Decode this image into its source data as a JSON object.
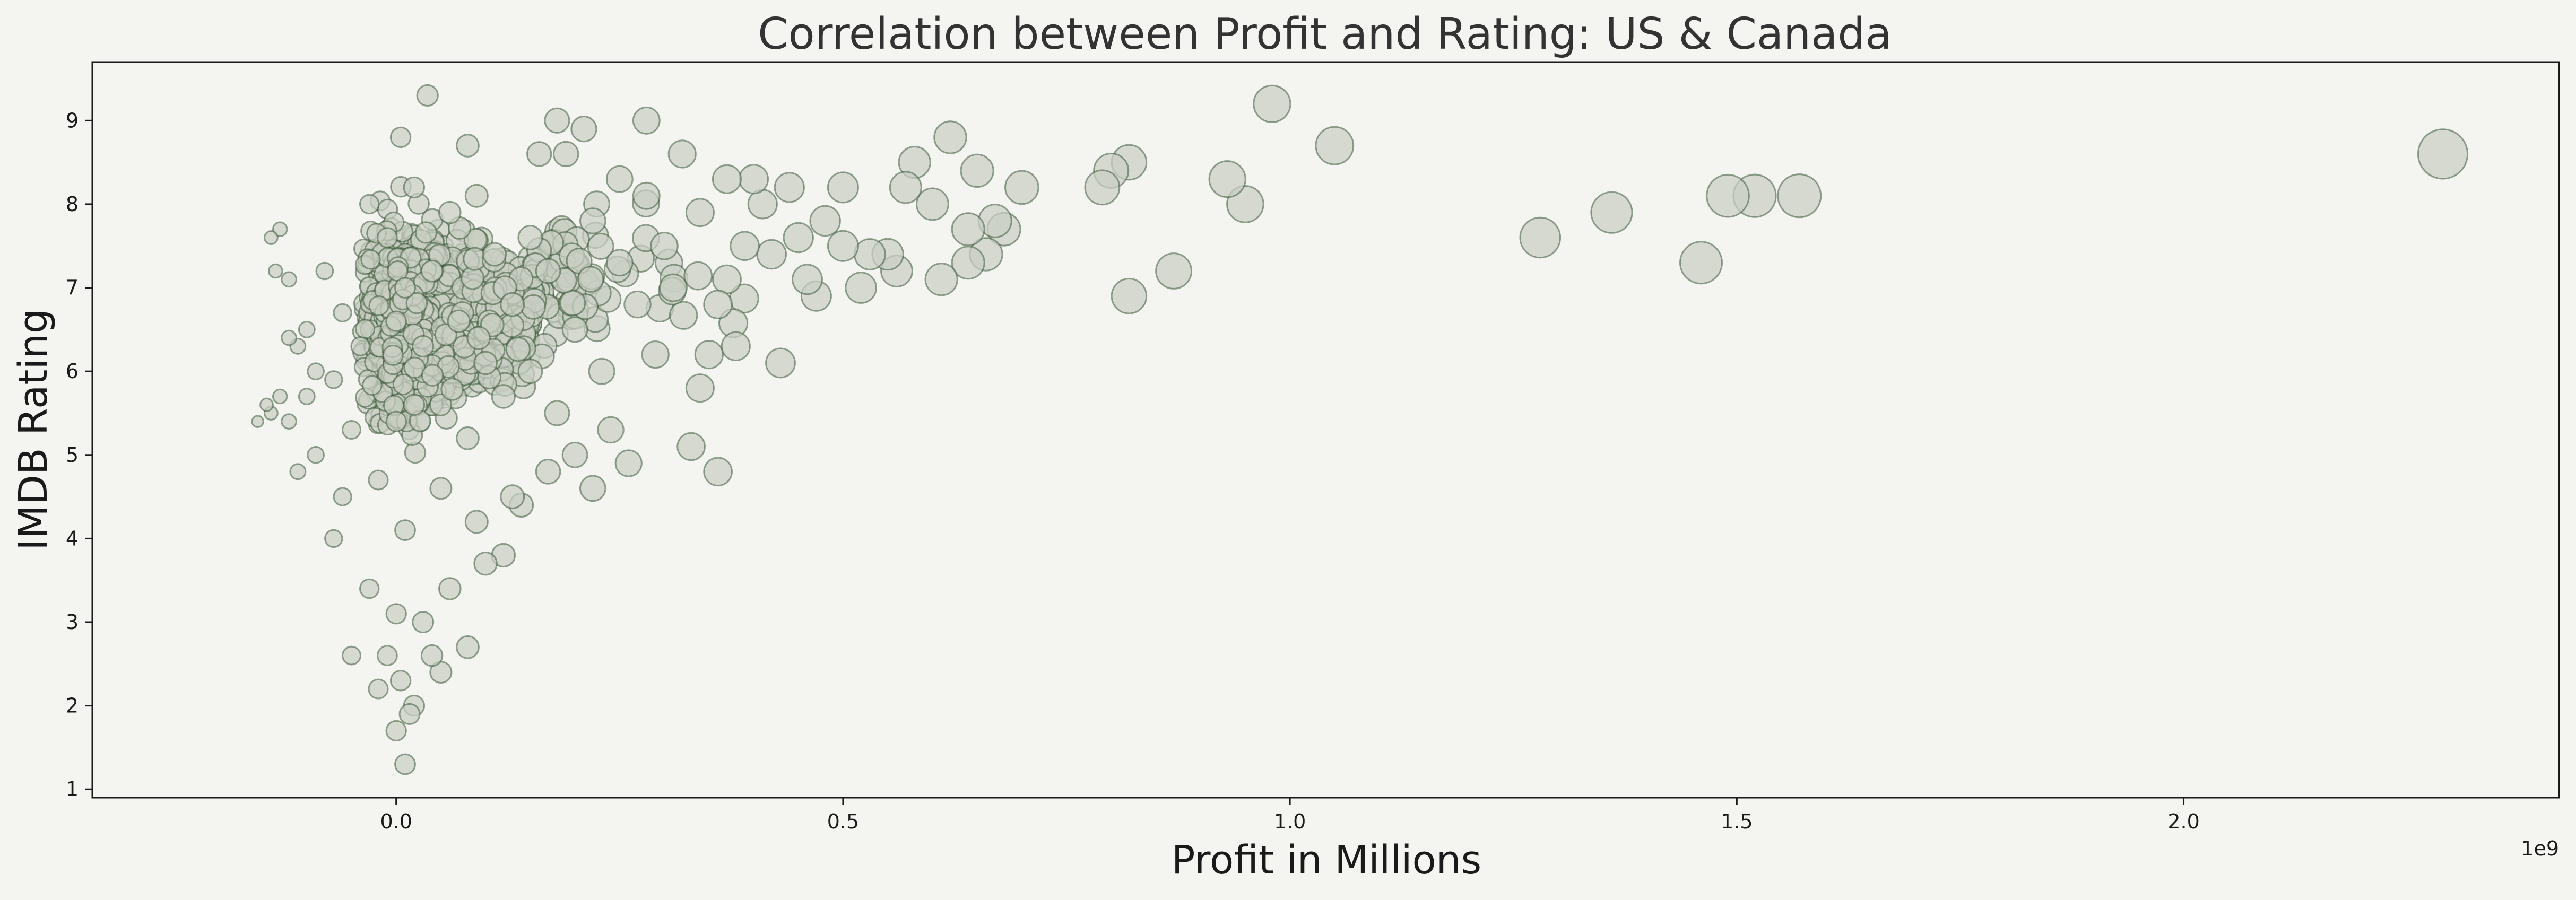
{
  "chart_data": {
    "type": "scatter",
    "title": "Correlation between Profit and Rating: US & Canada",
    "xlabel": "Profit in Millions",
    "ylabel": "IMDB Rating",
    "x_offset_label": "1e9",
    "xlim": [
      -0.34,
      2.42
    ],
    "ylim": [
      0.9,
      9.7
    ],
    "x_ticks": [
      0.0,
      0.5,
      1.0,
      1.5,
      2.0
    ],
    "x_tick_labels": [
      "0.0",
      "0.5",
      "1.0",
      "1.5",
      "2.0"
    ],
    "y_ticks": [
      1,
      2,
      3,
      4,
      5,
      6,
      7,
      8,
      9
    ],
    "y_tick_labels": [
      "1",
      "2",
      "3",
      "4",
      "5",
      "6",
      "7",
      "8",
      "9"
    ],
    "grid": false,
    "legend": "none",
    "marker_size_encodes": "profit",
    "colors": {
      "fill": "#c9cfc4",
      "edge": "#3c5a3a",
      "background": "#f4f5f0"
    },
    "points": [
      [
        2.29,
        8.6
      ],
      [
        1.57,
        8.1
      ],
      [
        1.52,
        8.1
      ],
      [
        1.49,
        8.1
      ],
      [
        1.46,
        7.3
      ],
      [
        1.36,
        7.9
      ],
      [
        1.28,
        7.6
      ],
      [
        1.05,
        8.7
      ],
      [
        0.98,
        9.2
      ],
      [
        0.95,
        8.0
      ],
      [
        0.93,
        8.3
      ],
      [
        0.87,
        7.2
      ],
      [
        0.82,
        6.9
      ],
      [
        0.82,
        8.5
      ],
      [
        0.8,
        8.4
      ],
      [
        0.79,
        8.2
      ],
      [
        0.7,
        8.2
      ],
      [
        0.68,
        7.7
      ],
      [
        0.67,
        7.8
      ],
      [
        0.66,
        7.4
      ],
      [
        0.65,
        8.4
      ],
      [
        0.64,
        7.3
      ],
      [
        0.64,
        7.7
      ],
      [
        0.62,
        8.8
      ],
      [
        0.61,
        7.1
      ],
      [
        0.6,
        8.0
      ],
      [
        0.58,
        8.5
      ],
      [
        0.57,
        8.2
      ],
      [
        0.56,
        7.2
      ],
      [
        0.55,
        7.4
      ],
      [
        0.53,
        7.4
      ],
      [
        0.52,
        7.0
      ],
      [
        0.5,
        7.5
      ],
      [
        0.5,
        8.2
      ],
      [
        0.48,
        7.8
      ],
      [
        0.47,
        6.9
      ],
      [
        0.46,
        7.1
      ],
      [
        0.45,
        7.6
      ],
      [
        0.44,
        8.2
      ],
      [
        0.43,
        6.1
      ],
      [
        0.42,
        7.4
      ],
      [
        0.41,
        8.0
      ],
      [
        0.4,
        8.3
      ],
      [
        0.39,
        7.5
      ],
      [
        0.38,
        6.3
      ],
      [
        0.37,
        8.3
      ],
      [
        0.37,
        7.1
      ],
      [
        0.36,
        6.8
      ],
      [
        0.36,
        4.8
      ],
      [
        0.35,
        6.2
      ],
      [
        0.34,
        5.8
      ],
      [
        0.34,
        7.9
      ],
      [
        0.33,
        5.1
      ],
      [
        0.32,
        8.6
      ],
      [
        0.31,
        7.0
      ],
      [
        0.3,
        7.5
      ],
      [
        0.29,
        6.2
      ],
      [
        0.28,
        9.0
      ],
      [
        0.28,
        8.1
      ],
      [
        0.27,
        6.8
      ],
      [
        0.26,
        4.9
      ],
      [
        0.25,
        7.3
      ],
      [
        0.25,
        8.3
      ],
      [
        0.24,
        5.3
      ],
      [
        0.23,
        6.0
      ],
      [
        0.22,
        4.6
      ],
      [
        0.22,
        7.8
      ],
      [
        0.21,
        8.9
      ],
      [
        0.2,
        5.0
      ],
      [
        0.2,
        6.5
      ],
      [
        0.19,
        8.6
      ],
      [
        0.18,
        9.0
      ],
      [
        0.18,
        5.5
      ],
      [
        0.17,
        4.8
      ],
      [
        0.17,
        7.2
      ],
      [
        0.16,
        8.6
      ],
      [
        0.15,
        6.0
      ],
      [
        0.15,
        7.6
      ],
      [
        0.14,
        4.4
      ],
      [
        0.13,
        6.8
      ],
      [
        0.13,
        4.5
      ],
      [
        0.12,
        3.8
      ],
      [
        0.12,
        5.7
      ],
      [
        0.11,
        7.4
      ],
      [
        0.1,
        3.7
      ],
      [
        0.1,
        6.1
      ],
      [
        0.09,
        4.2
      ],
      [
        0.09,
        8.1
      ],
      [
        0.08,
        2.7
      ],
      [
        0.08,
        8.7
      ],
      [
        0.08,
        5.2
      ],
      [
        0.07,
        6.6
      ],
      [
        0.06,
        7.9
      ],
      [
        0.06,
        3.4
      ],
      [
        0.05,
        2.4
      ],
      [
        0.05,
        4.6
      ],
      [
        0.04,
        2.6
      ],
      [
        0.04,
        7.2
      ],
      [
        0.035,
        9.3
      ],
      [
        0.03,
        3.0
      ],
      [
        0.03,
        6.3
      ],
      [
        0.02,
        2.0
      ],
      [
        0.02,
        5.6
      ],
      [
        0.02,
        8.2
      ],
      [
        0.015,
        1.9
      ],
      [
        0.01,
        1.3
      ],
      [
        0.01,
        4.1
      ],
      [
        0.01,
        7.0
      ],
      [
        0.005,
        2.3
      ],
      [
        0.005,
        8.8
      ],
      [
        0.0,
        1.7
      ],
      [
        0.0,
        3.1
      ],
      [
        0.0,
        5.4
      ],
      [
        0.0,
        6.6
      ],
      [
        -0.01,
        2.6
      ],
      [
        -0.01,
        7.6
      ],
      [
        -0.02,
        2.2
      ],
      [
        -0.02,
        4.7
      ],
      [
        -0.03,
        3.4
      ],
      [
        -0.03,
        8.0
      ],
      [
        -0.04,
        6.3
      ],
      [
        -0.05,
        2.6
      ],
      [
        -0.05,
        5.3
      ],
      [
        -0.06,
        4.5
      ],
      [
        -0.06,
        6.7
      ],
      [
        -0.07,
        4.0
      ],
      [
        -0.07,
        5.9
      ],
      [
        -0.08,
        7.2
      ],
      [
        -0.09,
        5.0
      ],
      [
        -0.09,
        6.0
      ],
      [
        -0.1,
        6.5
      ],
      [
        -0.1,
        5.7
      ],
      [
        -0.11,
        4.8
      ],
      [
        -0.11,
        6.3
      ],
      [
        -0.12,
        6.4
      ],
      [
        -0.12,
        7.1
      ],
      [
        -0.12,
        5.4
      ],
      [
        -0.13,
        7.7
      ],
      [
        -0.13,
        5.7
      ],
      [
        -0.135,
        7.2
      ],
      [
        -0.14,
        7.6
      ],
      [
        -0.14,
        5.5
      ],
      [
        -0.145,
        5.6
      ],
      [
        -0.155,
        5.4
      ]
    ],
    "dense_cluster": {
      "description_source": "visible dense band of overlapping points",
      "x_range": [
        -0.05,
        0.4
      ],
      "y_range": [
        1.8,
        8.8
      ],
      "count": 1400
    }
  }
}
